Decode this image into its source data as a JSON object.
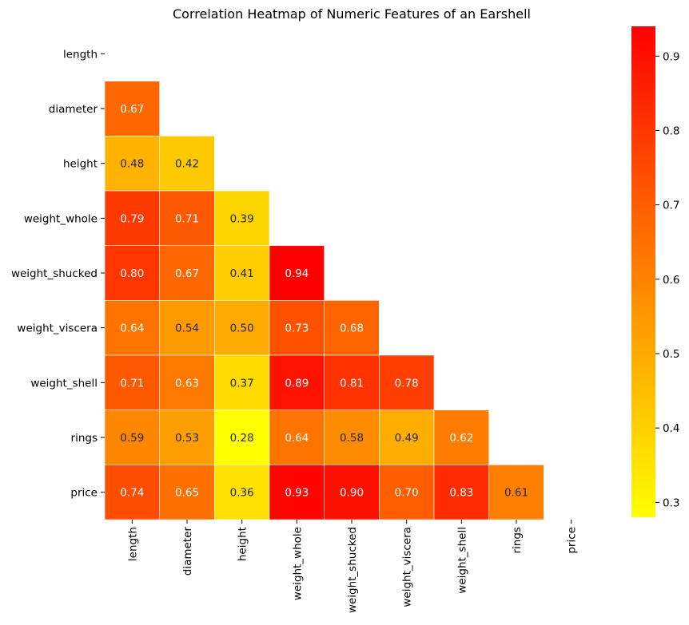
{
  "chart_data": {
    "type": "heatmap",
    "title": "Correlation Heatmap of Numeric Features of an Earshell",
    "xlabel": "",
    "ylabel": "",
    "labels": [
      "length",
      "diameter",
      "height",
      "weight_whole",
      "weight_shucked",
      "weight_viscera",
      "weight_shell",
      "rings",
      "price"
    ],
    "mask": "upper-triangle-including-diagonal",
    "annotation_format": "0.00",
    "values": [
      [
        null,
        null,
        null,
        null,
        null,
        null,
        null,
        null,
        null
      ],
      [
        0.67,
        null,
        null,
        null,
        null,
        null,
        null,
        null,
        null
      ],
      [
        0.48,
        0.42,
        null,
        null,
        null,
        null,
        null,
        null,
        null
      ],
      [
        0.79,
        0.71,
        0.39,
        null,
        null,
        null,
        null,
        null,
        null
      ],
      [
        0.8,
        0.67,
        0.41,
        0.94,
        null,
        null,
        null,
        null,
        null
      ],
      [
        0.64,
        0.54,
        0.5,
        0.73,
        0.68,
        null,
        null,
        null,
        null
      ],
      [
        0.71,
        0.63,
        0.37,
        0.89,
        0.81,
        0.78,
        null,
        null,
        null
      ],
      [
        0.59,
        0.53,
        0.28,
        0.64,
        0.58,
        0.49,
        0.62,
        null,
        null
      ],
      [
        0.74,
        0.65,
        0.36,
        0.93,
        0.9,
        0.7,
        0.83,
        0.61,
        null
      ]
    ],
    "colormap": "autumn_r",
    "colormap_colors": [
      "#ffff00",
      "#ff0000"
    ],
    "vmin": 0.28,
    "vmax": 0.94,
    "cell_border_color": "#ffffff",
    "colorbar": {
      "ticks": [
        0.3,
        0.4,
        0.5,
        0.6,
        0.7,
        0.8,
        0.9
      ],
      "tick_labels": [
        "0.3",
        "0.4",
        "0.5",
        "0.6",
        "0.7",
        "0.8",
        "0.9"
      ],
      "placement": "right"
    },
    "grid": false
  }
}
